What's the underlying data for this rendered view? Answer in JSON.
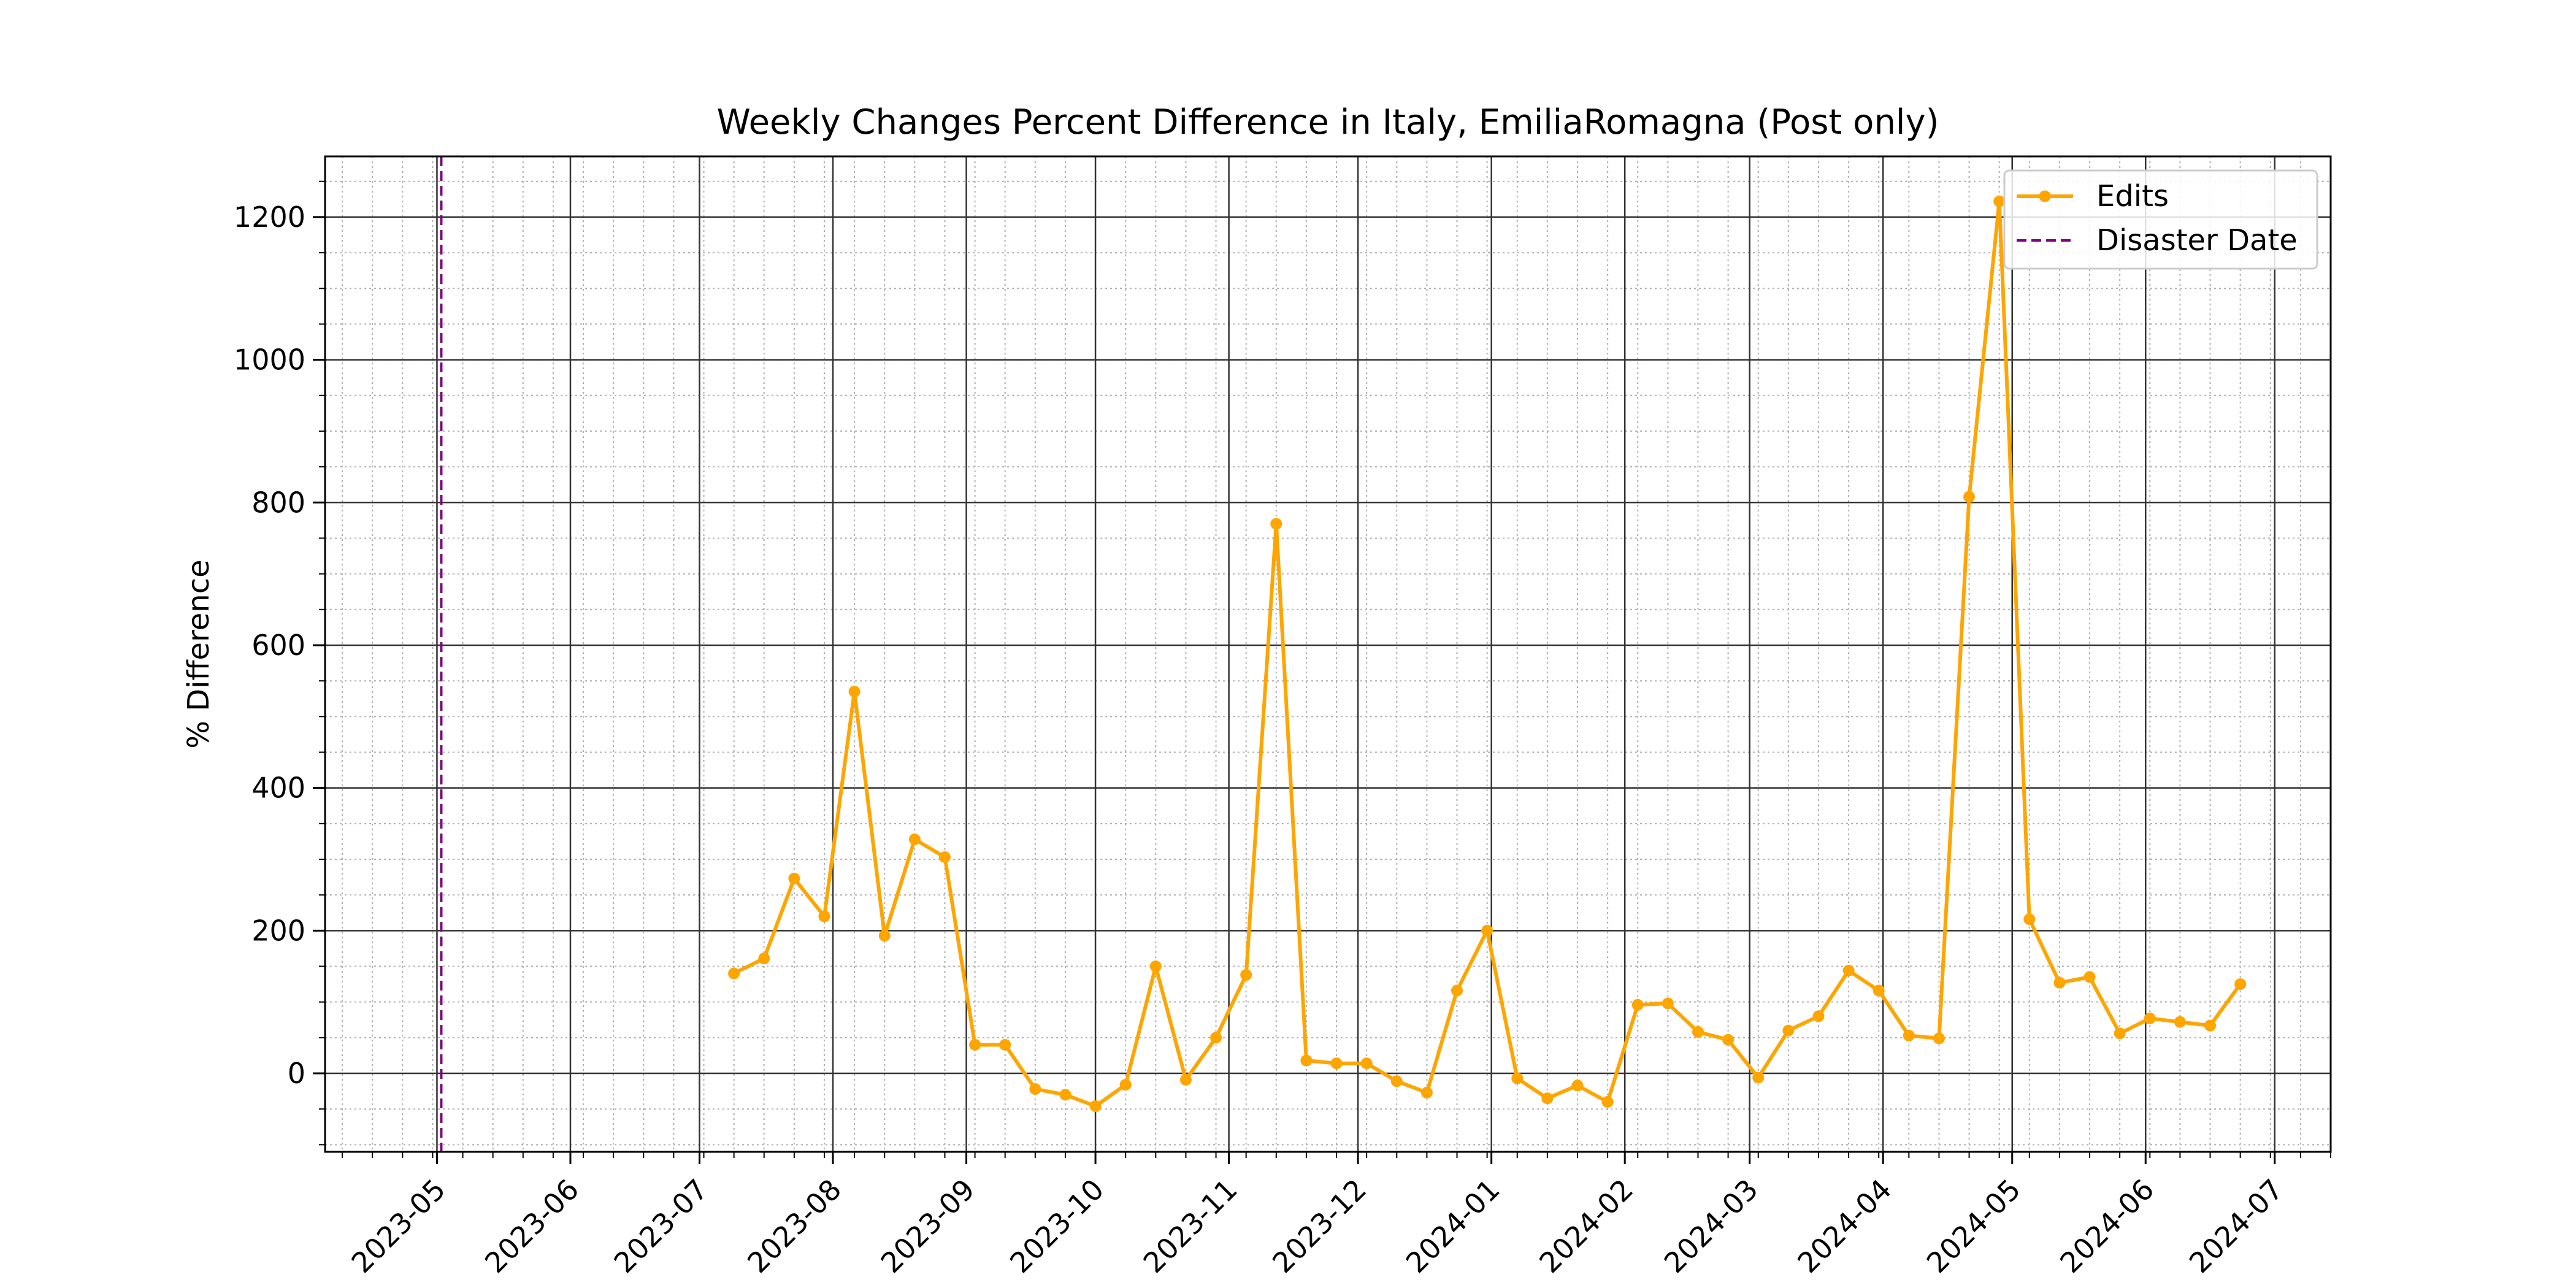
{
  "chart_data": {
    "type": "line",
    "title": "Weekly Changes Percent Difference in Italy, EmiliaRomagna (Post only)",
    "xlabel": "",
    "ylabel": "% Difference",
    "xlim": [
      "2023-04-05",
      "2024-07-14"
    ],
    "ylim": [
      -110,
      1285
    ],
    "x_ticks": [
      "2023-05",
      "2023-06",
      "2023-07",
      "2023-08",
      "2023-09",
      "2023-10",
      "2023-11",
      "2023-12",
      "2024-01",
      "2024-02",
      "2024-03",
      "2024-04",
      "2024-05",
      "2024-06",
      "2024-07"
    ],
    "y_ticks": [
      0,
      200,
      400,
      600,
      800,
      1000,
      1200
    ],
    "grid": {
      "major": true,
      "minor": true
    },
    "legend_position": "top-right",
    "series": [
      {
        "name": "Edits",
        "color": "#FFA500",
        "marker": "circle",
        "points": [
          {
            "x": "2023-07-09",
            "y": 140
          },
          {
            "x": "2023-07-16",
            "y": 161
          },
          {
            "x": "2023-07-23",
            "y": 273
          },
          {
            "x": "2023-07-30",
            "y": 220
          },
          {
            "x": "2023-08-06",
            "y": 535
          },
          {
            "x": "2023-08-13",
            "y": 193
          },
          {
            "x": "2023-08-20",
            "y": 328
          },
          {
            "x": "2023-08-27",
            "y": 303
          },
          {
            "x": "2023-09-03",
            "y": 40
          },
          {
            "x": "2023-09-10",
            "y": 40
          },
          {
            "x": "2023-09-17",
            "y": -22
          },
          {
            "x": "2023-09-24",
            "y": -30
          },
          {
            "x": "2023-10-01",
            "y": -46
          },
          {
            "x": "2023-10-08",
            "y": -16
          },
          {
            "x": "2023-10-15",
            "y": 150
          },
          {
            "x": "2023-10-22",
            "y": -9
          },
          {
            "x": "2023-10-29",
            "y": 50
          },
          {
            "x": "2023-11-05",
            "y": 138
          },
          {
            "x": "2023-11-12",
            "y": 770
          },
          {
            "x": "2023-11-19",
            "y": 18
          },
          {
            "x": "2023-11-26",
            "y": 14
          },
          {
            "x": "2023-12-03",
            "y": 14
          },
          {
            "x": "2023-12-10",
            "y": -11
          },
          {
            "x": "2023-12-17",
            "y": -27
          },
          {
            "x": "2023-12-24",
            "y": 116
          },
          {
            "x": "2023-12-31",
            "y": 200
          },
          {
            "x": "2024-01-07",
            "y": -7
          },
          {
            "x": "2024-01-14",
            "y": -35
          },
          {
            "x": "2024-01-21",
            "y": -17
          },
          {
            "x": "2024-01-28",
            "y": -40
          },
          {
            "x": "2024-02-04",
            "y": 96
          },
          {
            "x": "2024-02-11",
            "y": 98
          },
          {
            "x": "2024-02-18",
            "y": 58
          },
          {
            "x": "2024-02-25",
            "y": 47
          },
          {
            "x": "2024-03-03",
            "y": -6
          },
          {
            "x": "2024-03-10",
            "y": 60
          },
          {
            "x": "2024-03-17",
            "y": 80
          },
          {
            "x": "2024-03-24",
            "y": 144
          },
          {
            "x": "2024-03-31",
            "y": 116
          },
          {
            "x": "2024-04-07",
            "y": 53
          },
          {
            "x": "2024-04-14",
            "y": 49
          },
          {
            "x": "2024-04-21",
            "y": 808
          },
          {
            "x": "2024-04-28",
            "y": 1222
          },
          {
            "x": "2024-05-05",
            "y": 216
          },
          {
            "x": "2024-05-12",
            "y": 127
          },
          {
            "x": "2024-05-19",
            "y": 135
          },
          {
            "x": "2024-05-26",
            "y": 56
          },
          {
            "x": "2024-06-02",
            "y": 77
          },
          {
            "x": "2024-06-09",
            "y": 72
          },
          {
            "x": "2024-06-16",
            "y": 67
          },
          {
            "x": "2024-06-23",
            "y": 125
          }
        ]
      },
      {
        "name": "Disaster Date",
        "color": "#800080",
        "style": "dashed",
        "type": "vline",
        "x": "2023-05-02"
      }
    ]
  }
}
